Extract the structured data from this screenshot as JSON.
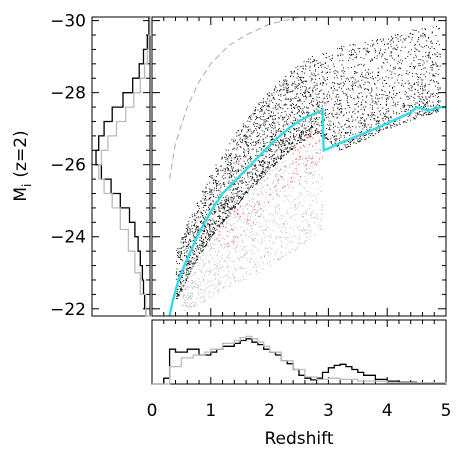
{
  "chart_data": [
    {
      "id": "main",
      "type": "scatter",
      "xlabel": "Redshift",
      "ylabel_main": "M",
      "ylabel_sub": "i",
      "ylabel_rest": "(z=2)",
      "xlim": [
        0,
        5
      ],
      "ylim": [
        -21.8,
        -30.1
      ],
      "x_ticks": [
        0,
        1,
        2,
        3,
        4,
        5
      ],
      "y_ticks": [
        -22,
        -24,
        -26,
        -28,
        -30
      ],
      "x_tick_labels": [
        "0",
        "1",
        "2",
        "3",
        "4",
        "5"
      ],
      "y_tick_labels": [
        "−22",
        "−24",
        "−26",
        "−28",
        "−30"
      ],
      "series": [
        {
          "kind": "scatter",
          "color": "#000000",
          "density": [
            {
              "x": 0.4,
              "y_from": -22.2,
              "y_to": -23.6
            },
            {
              "x": 0.7,
              "y_from": -23.2,
              "y_to": -24.8
            },
            {
              "x": 1.0,
              "y_from": -24.0,
              "y_to": -25.8
            },
            {
              "x": 1.3,
              "y_from": -24.6,
              "y_to": -26.6
            },
            {
              "x": 1.6,
              "y_from": -25.2,
              "y_to": -27.3
            },
            {
              "x": 1.9,
              "y_from": -25.7,
              "y_to": -27.9
            },
            {
              "x": 2.2,
              "y_from": -26.2,
              "y_to": -28.4
            },
            {
              "x": 2.5,
              "y_from": -26.6,
              "y_to": -28.8
            },
            {
              "x": 2.8,
              "y_from": -26.9,
              "y_to": -29.1
            },
            {
              "x": 3.2,
              "y_from": -26.4,
              "y_to": -29.3
            },
            {
              "x": 3.6,
              "y_from": -26.7,
              "y_to": -29.4
            },
            {
              "x": 4.0,
              "y_from": -27.0,
              "y_to": -29.6
            },
            {
              "x": 4.5,
              "y_from": -27.3,
              "y_to": -29.8
            },
            {
              "x": 4.9,
              "y_from": -27.5,
              "y_to": -29.9
            }
          ]
        },
        {
          "kind": "scatter",
          "color": "#bbbbbb",
          "density": [
            {
              "x": 0.5,
              "y_from": -21.9,
              "y_to": -23.0
            },
            {
              "x": 0.9,
              "y_from": -22.2,
              "y_to": -24.0
            },
            {
              "x": 1.3,
              "y_from": -22.6,
              "y_to": -24.9
            },
            {
              "x": 1.7,
              "y_from": -22.9,
              "y_to": -25.5
            },
            {
              "x": 2.1,
              "y_from": -23.3,
              "y_to": -26.0
            },
            {
              "x": 2.5,
              "y_from": -23.7,
              "y_to": -26.4
            },
            {
              "x": 2.9,
              "y_from": -24.2,
              "y_to": -26.8
            }
          ]
        },
        {
          "kind": "scatter",
          "color": "#ff5555",
          "density": [
            {
              "x": 1.1,
              "y_from": -23.4,
              "y_to": -24.4
            },
            {
              "x": 1.6,
              "y_from": -24.2,
              "y_to": -25.0
            },
            {
              "x": 2.2,
              "y_from": -25.2,
              "y_to": -26.0
            },
            {
              "x": 2.6,
              "y_from": -25.8,
              "y_to": -27.0
            },
            {
              "x": 2.85,
              "y_from": -26.0,
              "y_to": -27.2
            }
          ]
        },
        {
          "kind": "line",
          "color": "#33dde6",
          "style": "solid",
          "x": [
            0.3,
            0.35,
            0.45,
            0.6,
            0.8,
            1.0,
            1.2,
            1.5,
            1.8,
            2.1,
            2.4,
            2.6,
            2.8,
            2.9,
            2.92,
            3.0,
            3.2,
            3.5,
            3.8,
            4.0,
            4.2,
            4.4,
            4.5,
            4.7,
            4.9,
            5.0
          ],
          "y": [
            -21.8,
            -22.2,
            -22.8,
            -23.4,
            -24.1,
            -24.7,
            -25.2,
            -25.7,
            -26.2,
            -26.7,
            -27.1,
            -27.3,
            -27.45,
            -27.5,
            -26.4,
            -26.45,
            -26.6,
            -26.8,
            -27.0,
            -27.15,
            -27.3,
            -27.45,
            -27.6,
            -27.5,
            -27.6,
            -27.6
          ]
        },
        {
          "kind": "line",
          "color": "#aaaaaa",
          "style": "dashed",
          "x": [
            0.3,
            0.4,
            0.6,
            0.8,
            1.0,
            1.3,
            1.6,
            2.0,
            2.5,
            3.0,
            3.5,
            4.0,
            4.5,
            5.0
          ],
          "y": [
            -25.6,
            -26.6,
            -27.6,
            -28.3,
            -28.8,
            -29.3,
            -29.6,
            -29.9,
            -30.1,
            -30.2,
            -30.3,
            -30.3,
            -30.35,
            -30.4
          ]
        }
      ]
    },
    {
      "id": "top-histogram",
      "type": "line",
      "xlim": [
        0,
        5
      ],
      "x_ticks": [
        0,
        1,
        2,
        3,
        4,
        5
      ],
      "series": [
        {
          "color": "#000000",
          "x": [
            0.0,
            0.2,
            0.3,
            0.4,
            0.6,
            0.8,
            1.0,
            1.1,
            1.2,
            1.4,
            1.5,
            1.6,
            1.7,
            1.8,
            1.9,
            2.0,
            2.1,
            2.2,
            2.3,
            2.4,
            2.5,
            2.6,
            2.7,
            2.8,
            2.9,
            3.0,
            3.1,
            3.2,
            3.3,
            3.4,
            3.5,
            3.6,
            3.8,
            4.0,
            4.2,
            4.5,
            5.0
          ],
          "y": [
            0.0,
            0.1,
            0.6,
            0.55,
            0.6,
            0.5,
            0.55,
            0.6,
            0.65,
            0.7,
            0.75,
            0.78,
            0.72,
            0.68,
            0.6,
            0.55,
            0.5,
            0.4,
            0.35,
            0.25,
            0.15,
            0.1,
            0.07,
            0.1,
            0.2,
            0.28,
            0.32,
            0.34,
            0.3,
            0.25,
            0.2,
            0.15,
            0.08,
            0.05,
            0.03,
            0.01,
            0.0
          ]
        },
        {
          "color": "#bbbbbb",
          "x": [
            0.0,
            0.2,
            0.3,
            0.5,
            0.7,
            0.9,
            1.0,
            1.2,
            1.4,
            1.5,
            1.6,
            1.7,
            1.8,
            1.9,
            2.0,
            2.2,
            2.4,
            2.6,
            2.8,
            3.0,
            3.2,
            3.5,
            4.0,
            5.0
          ],
          "y": [
            0.0,
            0.0,
            0.3,
            0.45,
            0.5,
            0.55,
            0.6,
            0.7,
            0.75,
            0.8,
            0.82,
            0.78,
            0.72,
            0.65,
            0.55,
            0.4,
            0.25,
            0.12,
            0.08,
            0.1,
            0.08,
            0.05,
            0.02,
            0.0
          ]
        }
      ]
    },
    {
      "id": "left-histogram",
      "type": "line",
      "ylim": [
        -21.8,
        -30.1
      ],
      "y_ticks": [
        -22,
        -24,
        -26,
        -28,
        -30
      ],
      "series": [
        {
          "color": "#000000",
          "y": [
            -21.8,
            -22.0,
            -22.4,
            -22.8,
            -23.2,
            -23.6,
            -24.0,
            -24.4,
            -24.8,
            -25.2,
            -25.6,
            -26.0,
            -26.4,
            -26.8,
            -27.2,
            -27.6,
            -28.0,
            -28.4,
            -28.8,
            -29.2,
            -29.6,
            -30.1
          ],
          "x": [
            0.05,
            0.08,
            0.1,
            0.12,
            0.14,
            0.18,
            0.22,
            0.28,
            0.38,
            0.55,
            0.72,
            0.9,
            1.0,
            0.95,
            0.85,
            0.7,
            0.5,
            0.32,
            0.2,
            0.12,
            0.05,
            0.02
          ]
        },
        {
          "color": "#bbbbbb",
          "y": [
            -21.8,
            -22.4,
            -23.0,
            -23.6,
            -24.2,
            -24.8,
            -25.2,
            -25.6,
            -26.0,
            -26.4,
            -26.8,
            -27.2,
            -27.6,
            -28.0,
            -28.4,
            -28.8,
            -29.2,
            -29.6,
            -30.1
          ],
          "x": [
            0.0,
            0.08,
            0.18,
            0.28,
            0.4,
            0.55,
            0.7,
            0.85,
            0.95,
            0.9,
            0.78,
            0.62,
            0.45,
            0.3,
            0.18,
            0.1,
            0.05,
            0.02,
            0.0
          ]
        }
      ]
    }
  ]
}
